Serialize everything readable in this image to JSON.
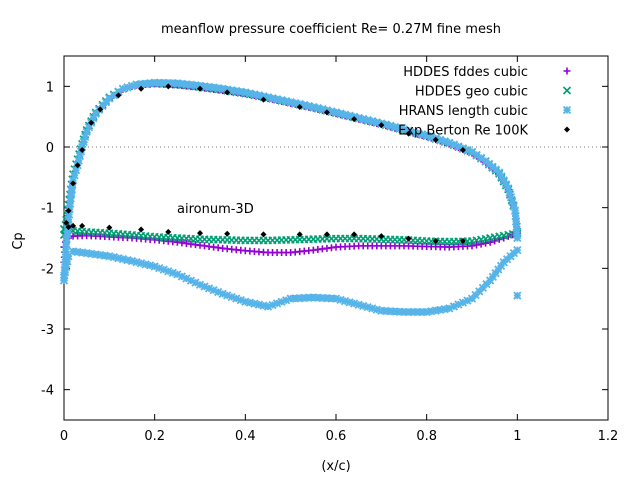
{
  "chart_data": {
    "type": "scatter",
    "title": "meanflow pressure coefficient  Re= 0.27M fine mesh",
    "xlabel": "(x/c)",
    "ylabel": "Cp",
    "xlim": [
      0,
      1.2
    ],
    "ylim": [
      -4.5,
      1.5
    ],
    "x_ticks": [
      "0",
      "0.2",
      "0.4",
      "0.6",
      "0.8",
      "1",
      "1.2"
    ],
    "y_ticks": [
      "1",
      "0",
      "-1",
      "-2",
      "-3",
      "-4"
    ],
    "x_tick_values": [
      0,
      0.2,
      0.4,
      0.6,
      0.8,
      1.0,
      1.2
    ],
    "y_tick_values": [
      1,
      0,
      -1,
      -2,
      -3,
      -4
    ],
    "zero_line": true,
    "grid": false,
    "legend_position": "top-right",
    "annotation": "aironum-3D",
    "series": [
      {
        "name": "HDDES fddes cubic",
        "color": "#9400d3",
        "marker": "plus",
        "upper": [
          [
            0.0,
            -1.9
          ],
          [
            0.005,
            -1.4
          ],
          [
            0.01,
            -1.05
          ],
          [
            0.015,
            -0.75
          ],
          [
            0.02,
            -0.5
          ],
          [
            0.03,
            -0.25
          ],
          [
            0.04,
            0.0
          ],
          [
            0.05,
            0.25
          ],
          [
            0.07,
            0.55
          ],
          [
            0.1,
            0.8
          ],
          [
            0.13,
            0.95
          ],
          [
            0.16,
            1.02
          ],
          [
            0.2,
            1.04
          ],
          [
            0.25,
            1.02
          ],
          [
            0.3,
            0.98
          ],
          [
            0.35,
            0.93
          ],
          [
            0.4,
            0.88
          ],
          [
            0.45,
            0.8
          ],
          [
            0.5,
            0.72
          ],
          [
            0.55,
            0.64
          ],
          [
            0.6,
            0.55
          ],
          [
            0.65,
            0.46
          ],
          [
            0.7,
            0.37
          ],
          [
            0.75,
            0.27
          ],
          [
            0.8,
            0.17
          ],
          [
            0.85,
            0.05
          ],
          [
            0.9,
            -0.1
          ],
          [
            0.93,
            -0.25
          ],
          [
            0.96,
            -0.45
          ],
          [
            0.98,
            -0.7
          ],
          [
            0.995,
            -1.05
          ],
          [
            1.0,
            -1.4
          ]
        ],
        "lower": [
          [
            0.0,
            -1.65
          ],
          [
            0.01,
            -1.5
          ],
          [
            0.02,
            -1.47
          ],
          [
            0.05,
            -1.46
          ],
          [
            0.1,
            -1.48
          ],
          [
            0.15,
            -1.5
          ],
          [
            0.2,
            -1.53
          ],
          [
            0.25,
            -1.57
          ],
          [
            0.3,
            -1.62
          ],
          [
            0.35,
            -1.67
          ],
          [
            0.4,
            -1.71
          ],
          [
            0.45,
            -1.74
          ],
          [
            0.5,
            -1.74
          ],
          [
            0.55,
            -1.7
          ],
          [
            0.6,
            -1.65
          ],
          [
            0.65,
            -1.63
          ],
          [
            0.7,
            -1.63
          ],
          [
            0.75,
            -1.63
          ],
          [
            0.8,
            -1.64
          ],
          [
            0.85,
            -1.65
          ],
          [
            0.9,
            -1.63
          ],
          [
            0.94,
            -1.57
          ],
          [
            0.97,
            -1.5
          ],
          [
            1.0,
            -1.42
          ]
        ]
      },
      {
        "name": "HDDES geo cubic",
        "color": "#009e73",
        "marker": "cross",
        "upper": [
          [
            0.0,
            -1.45
          ],
          [
            0.005,
            -1.2
          ],
          [
            0.01,
            -0.95
          ],
          [
            0.015,
            -0.7
          ],
          [
            0.02,
            -0.45
          ],
          [
            0.03,
            -0.2
          ],
          [
            0.04,
            0.05
          ],
          [
            0.05,
            0.28
          ],
          [
            0.07,
            0.57
          ],
          [
            0.1,
            0.82
          ],
          [
            0.13,
            0.96
          ],
          [
            0.16,
            1.03
          ],
          [
            0.2,
            1.05
          ],
          [
            0.25,
            1.03
          ],
          [
            0.3,
            0.99
          ],
          [
            0.35,
            0.94
          ],
          [
            0.4,
            0.88
          ],
          [
            0.45,
            0.81
          ],
          [
            0.5,
            0.73
          ],
          [
            0.55,
            0.65
          ],
          [
            0.6,
            0.56
          ],
          [
            0.65,
            0.47
          ],
          [
            0.7,
            0.38
          ],
          [
            0.75,
            0.28
          ],
          [
            0.8,
            0.18
          ],
          [
            0.85,
            0.06
          ],
          [
            0.9,
            -0.09
          ],
          [
            0.93,
            -0.24
          ],
          [
            0.96,
            -0.44
          ],
          [
            0.98,
            -0.7
          ],
          [
            0.995,
            -1.05
          ],
          [
            1.0,
            -1.4
          ]
        ],
        "lower": [
          [
            0.0,
            -1.35
          ],
          [
            0.01,
            -1.35
          ],
          [
            0.02,
            -1.38
          ],
          [
            0.05,
            -1.4
          ],
          [
            0.1,
            -1.42
          ],
          [
            0.15,
            -1.45
          ],
          [
            0.2,
            -1.48
          ],
          [
            0.25,
            -1.5
          ],
          [
            0.3,
            -1.52
          ],
          [
            0.35,
            -1.53
          ],
          [
            0.4,
            -1.54
          ],
          [
            0.45,
            -1.54
          ],
          [
            0.5,
            -1.53
          ],
          [
            0.55,
            -1.52
          ],
          [
            0.6,
            -1.51
          ],
          [
            0.65,
            -1.51
          ],
          [
            0.7,
            -1.52
          ],
          [
            0.75,
            -1.53
          ],
          [
            0.8,
            -1.55
          ],
          [
            0.85,
            -1.56
          ],
          [
            0.9,
            -1.55
          ],
          [
            0.94,
            -1.5
          ],
          [
            0.97,
            -1.46
          ],
          [
            1.0,
            -1.42
          ]
        ]
      },
      {
        "name": "HRANS length cubic",
        "color": "#56b4e9",
        "marker": "star",
        "upper": [
          [
            0.0,
            -2.2
          ],
          [
            0.005,
            -1.6
          ],
          [
            0.01,
            -1.2
          ],
          [
            0.015,
            -0.85
          ],
          [
            0.02,
            -0.55
          ],
          [
            0.03,
            -0.3
          ],
          [
            0.04,
            0.0
          ],
          [
            0.05,
            0.25
          ],
          [
            0.07,
            0.55
          ],
          [
            0.1,
            0.8
          ],
          [
            0.13,
            0.96
          ],
          [
            0.16,
            1.03
          ],
          [
            0.2,
            1.06
          ],
          [
            0.25,
            1.05
          ],
          [
            0.3,
            1.01
          ],
          [
            0.35,
            0.96
          ],
          [
            0.4,
            0.9
          ],
          [
            0.45,
            0.82
          ],
          [
            0.5,
            0.74
          ],
          [
            0.55,
            0.66
          ],
          [
            0.6,
            0.57
          ],
          [
            0.65,
            0.48
          ],
          [
            0.7,
            0.39
          ],
          [
            0.75,
            0.29
          ],
          [
            0.8,
            0.19
          ],
          [
            0.85,
            0.07
          ],
          [
            0.9,
            -0.08
          ],
          [
            0.93,
            -0.23
          ],
          [
            0.96,
            -0.42
          ],
          [
            0.98,
            -0.68
          ],
          [
            0.995,
            -1.05
          ],
          [
            1.0,
            -1.5
          ]
        ],
        "lower": [
          [
            0.0,
            -2.15
          ],
          [
            0.01,
            -1.8
          ],
          [
            0.02,
            -1.72
          ],
          [
            0.05,
            -1.75
          ],
          [
            0.1,
            -1.8
          ],
          [
            0.15,
            -1.88
          ],
          [
            0.2,
            -1.97
          ],
          [
            0.25,
            -2.1
          ],
          [
            0.3,
            -2.27
          ],
          [
            0.35,
            -2.42
          ],
          [
            0.4,
            -2.55
          ],
          [
            0.45,
            -2.63
          ],
          [
            0.5,
            -2.5
          ],
          [
            0.55,
            -2.48
          ],
          [
            0.6,
            -2.5
          ],
          [
            0.65,
            -2.6
          ],
          [
            0.7,
            -2.7
          ],
          [
            0.75,
            -2.72
          ],
          [
            0.8,
            -2.72
          ],
          [
            0.85,
            -2.66
          ],
          [
            0.9,
            -2.5
          ],
          [
            0.94,
            -2.2
          ],
          [
            0.97,
            -1.9
          ],
          [
            0.985,
            -1.8
          ],
          [
            1.0,
            -1.7
          ],
          [
            1.0,
            -2.45
          ]
        ]
      },
      {
        "name": "Exp Berton Re 100K",
        "color": "#000000",
        "marker": "diamond",
        "upper": [
          [
            0.005,
            -1.25
          ],
          [
            0.01,
            -1.05
          ],
          [
            0.02,
            -0.6
          ],
          [
            0.03,
            -0.3
          ],
          [
            0.04,
            -0.05
          ],
          [
            0.06,
            0.4
          ],
          [
            0.08,
            0.62
          ],
          [
            0.12,
            0.85
          ],
          [
            0.17,
            0.96
          ],
          [
            0.23,
            1.0
          ],
          [
            0.3,
            0.96
          ],
          [
            0.36,
            0.9
          ],
          [
            0.44,
            0.78
          ],
          [
            0.52,
            0.66
          ],
          [
            0.58,
            0.57
          ],
          [
            0.64,
            0.46
          ],
          [
            0.7,
            0.36
          ],
          [
            0.76,
            0.22
          ],
          [
            0.82,
            0.12
          ],
          [
            0.88,
            -0.05
          ]
        ],
        "lower": [
          [
            0.01,
            -1.32
          ],
          [
            0.02,
            -1.3
          ],
          [
            0.04,
            -1.3
          ],
          [
            0.1,
            -1.33
          ],
          [
            0.17,
            -1.36
          ],
          [
            0.23,
            -1.4
          ],
          [
            0.3,
            -1.42
          ],
          [
            0.36,
            -1.43
          ],
          [
            0.44,
            -1.44
          ],
          [
            0.52,
            -1.44
          ],
          [
            0.58,
            -1.44
          ],
          [
            0.64,
            -1.44
          ],
          [
            0.7,
            -1.47
          ],
          [
            0.76,
            -1.51
          ],
          [
            0.82,
            -1.55
          ],
          [
            0.88,
            -1.55
          ]
        ]
      }
    ]
  }
}
